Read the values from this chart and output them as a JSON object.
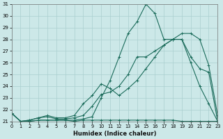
{
  "xlabel": "Humidex (Indice chaleur)",
  "bg_color": "#cce8e8",
  "grid_color": "#aacfcf",
  "line_color": "#1a6b5a",
  "xlim": [
    0,
    23
  ],
  "ylim": [
    21,
    31
  ],
  "yticks": [
    21,
    22,
    23,
    24,
    25,
    26,
    27,
    28,
    29,
    30,
    31
  ],
  "xticks": [
    0,
    1,
    2,
    3,
    4,
    5,
    6,
    7,
    8,
    9,
    10,
    11,
    12,
    13,
    14,
    15,
    16,
    17,
    18,
    19,
    20,
    21,
    22,
    23
  ],
  "series": [
    {
      "x": [
        0,
        1,
        2,
        3,
        4,
        5,
        6,
        7,
        8,
        9,
        10,
        11,
        12,
        13,
        14,
        15,
        16,
        17,
        18,
        19,
        20,
        21,
        22,
        23
      ],
      "y": [
        21.7,
        21.0,
        21.0,
        21.1,
        21.1,
        21.1,
        21.1,
        21.0,
        21.1,
        21.1,
        21.1,
        21.1,
        21.1,
        21.1,
        21.1,
        21.1,
        21.1,
        21.1,
        21.1,
        21.0,
        21.0,
        21.0,
        21.0,
        21.0
      ]
    },
    {
      "x": [
        0,
        1,
        2,
        3,
        4,
        5,
        6,
        7,
        8,
        9,
        10,
        11,
        12,
        13,
        14,
        15,
        16,
        17,
        18,
        19,
        20,
        21,
        22,
        23
      ],
      "y": [
        21.7,
        21.0,
        21.0,
        21.1,
        21.1,
        21.1,
        21.1,
        21.1,
        21.2,
        21.4,
        23.0,
        24.5,
        26.5,
        28.5,
        29.5,
        31.0,
        30.2,
        28.0,
        28.0,
        28.0,
        26.0,
        24.0,
        22.5,
        21.0
      ]
    },
    {
      "x": [
        0,
        1,
        2,
        3,
        4,
        5,
        6,
        7,
        8,
        9,
        10,
        11,
        12,
        13,
        14,
        15,
        16,
        17,
        18,
        19,
        20,
        21,
        22,
        23
      ],
      "y": [
        21.7,
        21.0,
        21.1,
        21.3,
        21.4,
        21.2,
        21.2,
        21.3,
        21.5,
        22.3,
        23.3,
        23.5,
        24.0,
        25.0,
        26.5,
        26.5,
        27.0,
        27.5,
        28.0,
        28.0,
        26.5,
        25.5,
        25.2,
        21.0
      ]
    },
    {
      "x": [
        0,
        1,
        2,
        3,
        4,
        5,
        6,
        7,
        8,
        9,
        10,
        11,
        12,
        13,
        14,
        15,
        16,
        17,
        18,
        19,
        20,
        21,
        22,
        23
      ],
      "y": [
        21.7,
        21.0,
        21.1,
        21.3,
        21.5,
        21.3,
        21.3,
        21.5,
        22.5,
        23.2,
        24.2,
        23.8,
        23.2,
        23.8,
        24.5,
        25.5,
        26.5,
        27.5,
        28.0,
        28.5,
        28.5,
        28.0,
        25.8,
        21.5
      ]
    }
  ]
}
